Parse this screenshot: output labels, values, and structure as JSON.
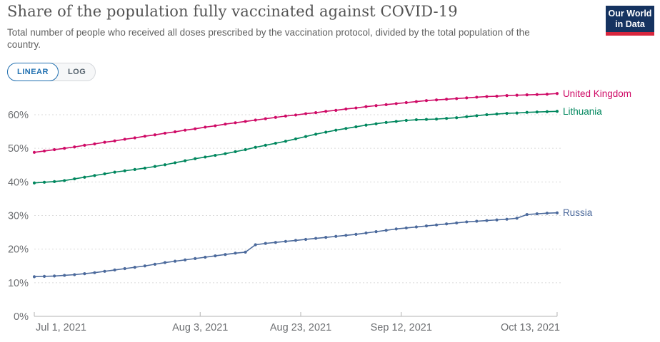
{
  "header": {
    "title": "Share of the population fully vaccinated against COVID-19",
    "subtitle": "Total number of people who received all doses prescribed by the vaccination protocol, divided by the total population of the country.",
    "logo": {
      "line1": "Our World",
      "line2": "in Data",
      "bg_color": "#153360",
      "bar_color": "#d7263d"
    }
  },
  "controls": {
    "accent_color": "#2271b1",
    "scale_toggle": [
      {
        "label": "LINEAR",
        "selected": true
      },
      {
        "label": "LOG",
        "selected": false
      }
    ]
  },
  "chart_data": {
    "type": "line",
    "title": "Share of the population fully vaccinated against COVID-19",
    "xlabel": "",
    "ylabel": "",
    "x_unit": "days since Jul 1, 2021",
    "ylim": [
      0,
      70
    ],
    "grid": "horizontal dashed",
    "legend_position": "labels at right end of lines",
    "marker_style": "dots on line",
    "x_ticks": [
      {
        "day": 0,
        "label": "Jul 1, 2021"
      },
      {
        "day": 33,
        "label": "Aug 3, 2021"
      },
      {
        "day": 53,
        "label": "Aug 23, 2021"
      },
      {
        "day": 73,
        "label": "Sep 12, 2021"
      },
      {
        "day": 104,
        "label": "Oct 13, 2021"
      }
    ],
    "y_ticks": [
      {
        "value": 0,
        "label": "0%"
      },
      {
        "value": 10,
        "label": "10%"
      },
      {
        "value": 20,
        "label": "20%"
      },
      {
        "value": 30,
        "label": "30%"
      },
      {
        "value": 40,
        "label": "40%"
      },
      {
        "value": 50,
        "label": "50%"
      },
      {
        "value": 60,
        "label": "60%"
      }
    ],
    "x_days": [
      0,
      2,
      4,
      6,
      8,
      10,
      12,
      14,
      16,
      18,
      20,
      22,
      24,
      26,
      28,
      30,
      32,
      34,
      36,
      38,
      40,
      42,
      44,
      46,
      48,
      50,
      52,
      54,
      56,
      58,
      60,
      62,
      64,
      66,
      68,
      70,
      72,
      74,
      76,
      78,
      80,
      82,
      84,
      86,
      88,
      90,
      92,
      94,
      96,
      98,
      100,
      102,
      104
    ],
    "series": [
      {
        "name": "United Kingdom",
        "color": "#cf0a66",
        "values": [
          48.8,
          49.2,
          49.6,
          50.0,
          50.4,
          50.9,
          51.3,
          51.8,
          52.2,
          52.7,
          53.1,
          53.6,
          54.0,
          54.5,
          54.9,
          55.4,
          55.8,
          56.3,
          56.7,
          57.2,
          57.6,
          58.0,
          58.4,
          58.8,
          59.2,
          59.6,
          59.9,
          60.3,
          60.6,
          61.0,
          61.3,
          61.7,
          62.0,
          62.4,
          62.7,
          63.0,
          63.3,
          63.6,
          63.9,
          64.2,
          64.4,
          64.6,
          64.8,
          65.0,
          65.2,
          65.4,
          65.5,
          65.7,
          65.8,
          65.9,
          66.0,
          66.1,
          66.3
        ]
      },
      {
        "name": "Lithuania",
        "color": "#00875e",
        "values": [
          39.7,
          39.9,
          40.1,
          40.4,
          40.9,
          41.4,
          41.9,
          42.4,
          42.9,
          43.3,
          43.7,
          44.1,
          44.6,
          45.1,
          45.7,
          46.3,
          46.9,
          47.4,
          47.9,
          48.4,
          49.0,
          49.6,
          50.3,
          50.9,
          51.5,
          52.1,
          52.8,
          53.5,
          54.2,
          54.8,
          55.4,
          55.9,
          56.4,
          56.9,
          57.3,
          57.7,
          58.0,
          58.3,
          58.5,
          58.6,
          58.7,
          58.9,
          59.1,
          59.4,
          59.7,
          60.0,
          60.2,
          60.4,
          60.5,
          60.7,
          60.8,
          60.9,
          61.0
        ]
      },
      {
        "name": "Russia",
        "color": "#4c6a9c",
        "values": [
          11.8,
          11.9,
          12.0,
          12.2,
          12.4,
          12.7,
          13.0,
          13.4,
          13.8,
          14.2,
          14.6,
          15.0,
          15.5,
          16.0,
          16.4,
          16.8,
          17.2,
          17.6,
          18.0,
          18.4,
          18.8,
          19.1,
          21.3,
          21.7,
          22.0,
          22.3,
          22.6,
          22.9,
          23.2,
          23.5,
          23.8,
          24.1,
          24.4,
          24.8,
          25.2,
          25.6,
          26.0,
          26.3,
          26.6,
          26.9,
          27.2,
          27.5,
          27.8,
          28.1,
          28.3,
          28.5,
          28.7,
          28.9,
          29.2,
          30.3,
          30.5,
          30.7,
          30.8
        ]
      }
    ]
  }
}
